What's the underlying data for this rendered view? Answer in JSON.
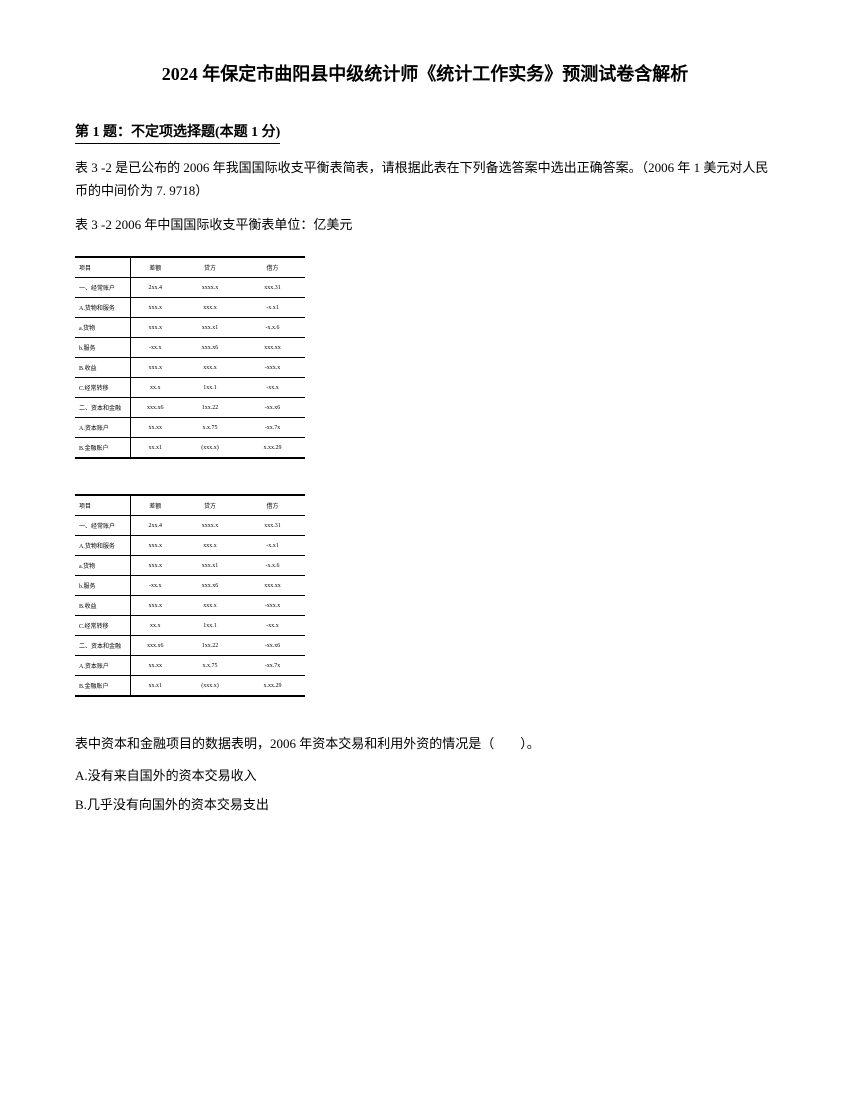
{
  "title": "2024 年保定市曲阳县中级统计师《统计工作实务》预测试卷含解析",
  "question": {
    "header": "第 1 题：不定项选择题(本题 1 分)",
    "body": "表 3 -2 是已公布的 2006 年我国国际收支平衡表简表，请根据此表在下列备选答案中选出正确答案。（2006 年 1 美元对人民币的中间价为 7. 9718）",
    "caption": "表 3 -2 2006 年中国国际收支平衡表单位：亿美元",
    "text": "表中资本和金融项目的数据表明，2006 年资本交易和利用外资的情况是（　　）。",
    "options": {
      "A": "A.没有来自国外的资本交易收入",
      "B": "B.几乎没有向国外的资本交易支出"
    }
  },
  "table": {
    "headers": [
      "项目",
      "差额",
      "贷方",
      "借方"
    ],
    "rows": [
      [
        "一、经常账户",
        "2xx.4",
        "xxxx.x",
        "xxx.31"
      ],
      [
        "A.货物和服务",
        "xxx.x",
        "xxx.x",
        "-x.x1"
      ],
      [
        "a.货物",
        "xxx.x",
        "xxx.x1",
        "-x.x.6"
      ],
      [
        "b.服务",
        "-xx.x",
        "xxx.x6",
        "xxx.xx"
      ],
      [
        "B.收益",
        "xxx.x",
        "xxx.x",
        "-xxx.x"
      ],
      [
        "C.经常转移",
        "xx.x",
        "1xx.1",
        "-xx.x"
      ],
      [
        "二、资本和金融",
        "xxx.x6",
        "1xx.22",
        "-xx.x6"
      ],
      [
        "A.资本账户",
        "xx.xx",
        "x.x.75",
        "-xx.7x"
      ],
      [
        "B.金融账户",
        "xx.x1",
        "(xxx.x)",
        "x.xx.29"
      ]
    ]
  }
}
